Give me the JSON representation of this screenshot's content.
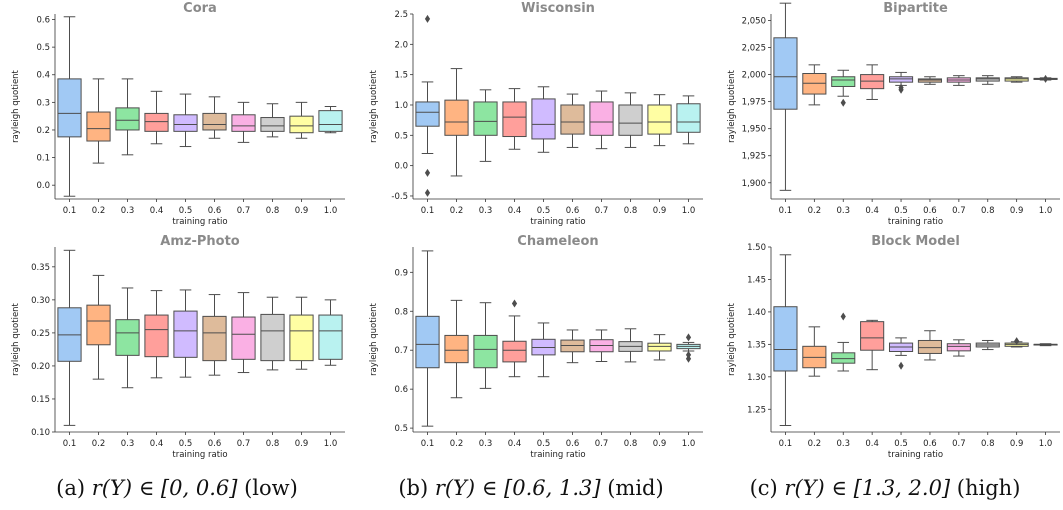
{
  "captions": [
    {
      "prefix": "(a) ",
      "math": "r(Y) ∈ [0, 0.6]",
      "suffix": " (low)"
    },
    {
      "prefix": "(b) ",
      "math": "r(Y) ∈ [0.6, 1.3]",
      "suffix": " (mid)"
    },
    {
      "prefix": "(c) ",
      "math": "r(Y) ∈ [1.3, 2.0]",
      "suffix": " (high)"
    }
  ],
  "palette": [
    "#a1c9f4",
    "#ffb482",
    "#8de5a1",
    "#ff9f9b",
    "#d0bbff",
    "#debb9b",
    "#fab0e4",
    "#cfcfcf",
    "#fffea3",
    "#b9f2f0"
  ],
  "chart_data": [
    {
      "type": "box",
      "title": "Cora",
      "xlabel": "training ratio",
      "ylabel": "rayleigh quotient",
      "categories": [
        "0.1",
        "0.2",
        "0.3",
        "0.4",
        "0.5",
        "0.6",
        "0.7",
        "0.8",
        "0.9",
        "1.0"
      ],
      "ylim": [
        -0.05,
        0.62
      ],
      "yticks": [
        0.0,
        0.1,
        0.2,
        0.3,
        0.4,
        0.5,
        0.6
      ],
      "ytick_labels": [
        "0.0",
        "0.1",
        "0.2",
        "0.3",
        "0.4",
        "0.5",
        "0.6"
      ],
      "boxes": [
        {
          "whislo": -0.04,
          "q1": 0.175,
          "med": 0.26,
          "q3": 0.385,
          "whishi": 0.61,
          "fliers": []
        },
        {
          "whislo": 0.08,
          "q1": 0.16,
          "med": 0.205,
          "q3": 0.265,
          "whishi": 0.385,
          "fliers": []
        },
        {
          "whislo": 0.11,
          "q1": 0.2,
          "med": 0.235,
          "q3": 0.28,
          "whishi": 0.385,
          "fliers": []
        },
        {
          "whislo": 0.15,
          "q1": 0.195,
          "med": 0.23,
          "q3": 0.26,
          "whishi": 0.34,
          "fliers": []
        },
        {
          "whislo": 0.14,
          "q1": 0.195,
          "med": 0.22,
          "q3": 0.255,
          "whishi": 0.33,
          "fliers": []
        },
        {
          "whislo": 0.17,
          "q1": 0.2,
          "med": 0.22,
          "q3": 0.26,
          "whishi": 0.32,
          "fliers": []
        },
        {
          "whislo": 0.155,
          "q1": 0.195,
          "med": 0.215,
          "q3": 0.255,
          "whishi": 0.3,
          "fliers": []
        },
        {
          "whislo": 0.175,
          "q1": 0.195,
          "med": 0.215,
          "q3": 0.245,
          "whishi": 0.295,
          "fliers": []
        },
        {
          "whislo": 0.17,
          "q1": 0.19,
          "med": 0.215,
          "q3": 0.25,
          "whishi": 0.3,
          "fliers": []
        },
        {
          "whislo": 0.19,
          "q1": 0.195,
          "med": 0.22,
          "q3": 0.27,
          "whishi": 0.285,
          "fliers": []
        }
      ]
    },
    {
      "type": "box",
      "title": "Wisconsin",
      "xlabel": "training ratio",
      "ylabel": "rayleigh quotient",
      "categories": [
        "0.1",
        "0.2",
        "0.3",
        "0.4",
        "0.5",
        "0.6",
        "0.7",
        "0.8",
        "0.9",
        "1.0"
      ],
      "ylim": [
        -0.55,
        2.5
      ],
      "yticks": [
        -0.5,
        0.0,
        0.5,
        1.0,
        1.5,
        2.0,
        2.5
      ],
      "ytick_labels": [
        "-0.5",
        "0.0",
        "0.5",
        "1.0",
        "1.5",
        "2.0",
        "2.5"
      ],
      "boxes": [
        {
          "whislo": 0.2,
          "q1": 0.65,
          "med": 0.88,
          "q3": 1.05,
          "whishi": 1.38,
          "fliers": [
            2.42,
            -0.12,
            -0.45
          ]
        },
        {
          "whislo": -0.17,
          "q1": 0.5,
          "med": 0.72,
          "q3": 1.08,
          "whishi": 1.6,
          "fliers": []
        },
        {
          "whislo": 0.07,
          "q1": 0.5,
          "med": 0.73,
          "q3": 1.05,
          "whishi": 1.25,
          "fliers": []
        },
        {
          "whislo": 0.27,
          "q1": 0.48,
          "med": 0.8,
          "q3": 1.05,
          "whishi": 1.27,
          "fliers": []
        },
        {
          "whislo": 0.22,
          "q1": 0.44,
          "med": 0.68,
          "q3": 1.1,
          "whishi": 1.3,
          "fliers": []
        },
        {
          "whislo": 0.3,
          "q1": 0.52,
          "med": 0.72,
          "q3": 1.0,
          "whishi": 1.18,
          "fliers": []
        },
        {
          "whislo": 0.28,
          "q1": 0.5,
          "med": 0.72,
          "q3": 1.05,
          "whishi": 1.23,
          "fliers": []
        },
        {
          "whislo": 0.3,
          "q1": 0.5,
          "med": 0.7,
          "q3": 1.0,
          "whishi": 1.2,
          "fliers": []
        },
        {
          "whislo": 0.33,
          "q1": 0.52,
          "med": 0.72,
          "q3": 1.0,
          "whishi": 1.17,
          "fliers": []
        },
        {
          "whislo": 0.36,
          "q1": 0.55,
          "med": 0.72,
          "q3": 1.02,
          "whishi": 1.15,
          "fliers": []
        }
      ]
    },
    {
      "type": "box",
      "title": "Bipartite",
      "xlabel": "training ratio",
      "ylabel": "rayleigh quotient",
      "categories": [
        "0.1",
        "0.2",
        "0.3",
        "0.4",
        "0.5",
        "0.6",
        "0.7",
        "0.8",
        "0.9",
        "1.0"
      ],
      "ylim": [
        1.885,
        2.056
      ],
      "yticks": [
        1.9,
        1.925,
        1.95,
        1.975,
        2.0,
        2.025,
        2.05
      ],
      "ytick_labels": [
        "1,900",
        "1,925",
        "1,950",
        "1,975",
        "2,000",
        "2,025",
        "2,050"
      ],
      "boxes": [
        {
          "whislo": 1.893,
          "q1": 1.968,
          "med": 1.998,
          "q3": 2.034,
          "whishi": 2.066,
          "fliers": []
        },
        {
          "whislo": 1.972,
          "q1": 1.982,
          "med": 1.992,
          "q3": 2.001,
          "whishi": 2.009,
          "fliers": []
        },
        {
          "whislo": 1.98,
          "q1": 1.989,
          "med": 1.995,
          "q3": 1.998,
          "whishi": 2.004,
          "fliers": [
            1.974
          ]
        },
        {
          "whislo": 1.977,
          "q1": 1.987,
          "med": 1.994,
          "q3": 2.0,
          "whishi": 2.009,
          "fliers": []
        },
        {
          "whislo": 1.99,
          "q1": 1.993,
          "med": 1.996,
          "q3": 1.998,
          "whishi": 2.002,
          "fliers": [
            1.986,
            1.988
          ]
        },
        {
          "whislo": 1.991,
          "q1": 1.993,
          "med": 1.995,
          "q3": 1.996,
          "whishi": 1.998,
          "fliers": []
        },
        {
          "whislo": 1.99,
          "q1": 1.993,
          "med": 1.995,
          "q3": 1.997,
          "whishi": 1.999,
          "fliers": []
        },
        {
          "whislo": 1.991,
          "q1": 1.994,
          "med": 1.996,
          "q3": 1.997,
          "whishi": 1.999,
          "fliers": []
        },
        {
          "whislo": 1.993,
          "q1": 1.994,
          "med": 1.996,
          "q3": 1.997,
          "whishi": 1.998,
          "fliers": []
        },
        {
          "whislo": 1.995,
          "q1": 1.9955,
          "med": 1.996,
          "q3": 1.9965,
          "whishi": 1.997,
          "fliers": [
            1.996
          ]
        }
      ]
    },
    {
      "type": "box",
      "title": "Amz-Photo",
      "xlabel": "training ratio",
      "ylabel": "rayleigh quotient",
      "categories": [
        "0.1",
        "0.2",
        "0.3",
        "0.4",
        "0.5",
        "0.6",
        "0.7",
        "0.8",
        "0.9",
        "1.0"
      ],
      "ylim": [
        0.1,
        0.38
      ],
      "yticks": [
        0.1,
        0.15,
        0.2,
        0.25,
        0.3,
        0.35
      ],
      "ytick_labels": [
        "0.10",
        "0.15",
        "0.20",
        "0.25",
        "0.30",
        "0.35"
      ],
      "boxes": [
        {
          "whislo": 0.11,
          "q1": 0.207,
          "med": 0.247,
          "q3": 0.288,
          "whishi": 0.375,
          "fliers": []
        },
        {
          "whislo": 0.18,
          "q1": 0.232,
          "med": 0.268,
          "q3": 0.292,
          "whishi": 0.337,
          "fliers": []
        },
        {
          "whislo": 0.167,
          "q1": 0.216,
          "med": 0.25,
          "q3": 0.27,
          "whishi": 0.318,
          "fliers": []
        },
        {
          "whislo": 0.182,
          "q1": 0.214,
          "med": 0.255,
          "q3": 0.277,
          "whishi": 0.314,
          "fliers": []
        },
        {
          "whislo": 0.183,
          "q1": 0.213,
          "med": 0.253,
          "q3": 0.283,
          "whishi": 0.315,
          "fliers": []
        },
        {
          "whislo": 0.186,
          "q1": 0.208,
          "med": 0.25,
          "q3": 0.275,
          "whishi": 0.308,
          "fliers": []
        },
        {
          "whislo": 0.19,
          "q1": 0.21,
          "med": 0.248,
          "q3": 0.274,
          "whishi": 0.311,
          "fliers": []
        },
        {
          "whislo": 0.194,
          "q1": 0.208,
          "med": 0.253,
          "q3": 0.278,
          "whishi": 0.304,
          "fliers": []
        },
        {
          "whislo": 0.195,
          "q1": 0.208,
          "med": 0.253,
          "q3": 0.277,
          "whishi": 0.304,
          "fliers": []
        },
        {
          "whislo": 0.201,
          "q1": 0.21,
          "med": 0.253,
          "q3": 0.277,
          "whishi": 0.3,
          "fliers": []
        }
      ]
    },
    {
      "type": "box",
      "title": "Chameleon",
      "xlabel": "training ratio",
      "ylabel": "rayleigh quotient",
      "categories": [
        "0.1",
        "0.2",
        "0.3",
        "0.4",
        "0.5",
        "0.6",
        "0.7",
        "0.8",
        "0.9",
        "1.0"
      ],
      "ylim": [
        0.49,
        0.965
      ],
      "yticks": [
        0.5,
        0.6,
        0.7,
        0.8,
        0.9
      ],
      "ytick_labels": [
        "0.5",
        "0.6",
        "0.7",
        "0.8",
        "0.9"
      ],
      "boxes": [
        {
          "whislo": 0.505,
          "q1": 0.655,
          "med": 0.715,
          "q3": 0.787,
          "whishi": 0.955,
          "fliers": []
        },
        {
          "whislo": 0.578,
          "q1": 0.668,
          "med": 0.7,
          "q3": 0.738,
          "whishi": 0.828,
          "fliers": []
        },
        {
          "whislo": 0.602,
          "q1": 0.655,
          "med": 0.702,
          "q3": 0.738,
          "whishi": 0.822,
          "fliers": []
        },
        {
          "whislo": 0.632,
          "q1": 0.67,
          "med": 0.7,
          "q3": 0.723,
          "whishi": 0.788,
          "fliers": [
            0.82
          ]
        },
        {
          "whislo": 0.632,
          "q1": 0.688,
          "med": 0.707,
          "q3": 0.728,
          "whishi": 0.77,
          "fliers": []
        },
        {
          "whislo": 0.668,
          "q1": 0.696,
          "med": 0.712,
          "q3": 0.726,
          "whishi": 0.752,
          "fliers": []
        },
        {
          "whislo": 0.671,
          "q1": 0.696,
          "med": 0.712,
          "q3": 0.727,
          "whishi": 0.752,
          "fliers": []
        },
        {
          "whislo": 0.67,
          "q1": 0.697,
          "med": 0.71,
          "q3": 0.722,
          "whishi": 0.755,
          "fliers": []
        },
        {
          "whislo": 0.675,
          "q1": 0.698,
          "med": 0.71,
          "q3": 0.718,
          "whishi": 0.74,
          "fliers": []
        },
        {
          "whislo": 0.698,
          "q1": 0.704,
          "med": 0.71,
          "q3": 0.715,
          "whishi": 0.72,
          "fliers": [
            0.733,
            0.688,
            0.678
          ]
        }
      ]
    },
    {
      "type": "box",
      "title": "Block Model",
      "xlabel": "training ratio",
      "ylabel": "rayleigh quotient",
      "categories": [
        "0.1",
        "0.2",
        "0.3",
        "0.4",
        "0.5",
        "0.6",
        "0.7",
        "0.8",
        "0.9",
        "1.0"
      ],
      "ylim": [
        1.215,
        1.5
      ],
      "yticks": [
        1.25,
        1.3,
        1.35,
        1.4,
        1.45,
        1.5
      ],
      "ytick_labels": [
        "1.25",
        "1.30",
        "1.35",
        "1.40",
        "1.45",
        "1.50"
      ],
      "boxes": [
        {
          "whislo": 1.225,
          "q1": 1.309,
          "med": 1.342,
          "q3": 1.408,
          "whishi": 1.488,
          "fliers": []
        },
        {
          "whislo": 1.301,
          "q1": 1.314,
          "med": 1.33,
          "q3": 1.347,
          "whishi": 1.377,
          "fliers": []
        },
        {
          "whislo": 1.309,
          "q1": 1.321,
          "med": 1.328,
          "q3": 1.337,
          "whishi": 1.353,
          "fliers": [
            1.393
          ]
        },
        {
          "whislo": 1.311,
          "q1": 1.341,
          "med": 1.36,
          "q3": 1.385,
          "whishi": 1.387,
          "fliers": []
        },
        {
          "whislo": 1.333,
          "q1": 1.339,
          "med": 1.346,
          "q3": 1.352,
          "whishi": 1.36,
          "fliers": [
            1.317
          ]
        },
        {
          "whislo": 1.326,
          "q1": 1.336,
          "med": 1.345,
          "q3": 1.356,
          "whishi": 1.371,
          "fliers": []
        },
        {
          "whislo": 1.332,
          "q1": 1.34,
          "med": 1.347,
          "q3": 1.351,
          "whishi": 1.357,
          "fliers": []
        },
        {
          "whislo": 1.342,
          "q1": 1.346,
          "med": 1.349,
          "q3": 1.352,
          "whishi": 1.356,
          "fliers": []
        },
        {
          "whislo": 1.346,
          "q1": 1.347,
          "med": 1.35,
          "q3": 1.352,
          "whishi": 1.354,
          "fliers": [
            1.355
          ]
        },
        {
          "whislo": 1.348,
          "q1": 1.349,
          "med": 1.35,
          "q3": 1.35,
          "whishi": 1.351,
          "fliers": []
        }
      ]
    }
  ]
}
